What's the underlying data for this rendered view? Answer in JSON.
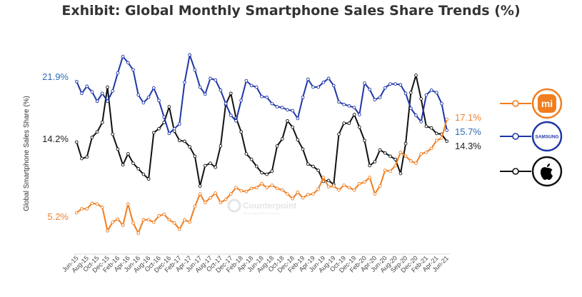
{
  "chart_data": {
    "type": "line",
    "title": "Exhibit: Global Monthly Smartphone Sales Share Trends (%)",
    "xlabel": "",
    "ylabel": "Global Smartphone Sales Share (%)",
    "ylim": [
      0,
      27
    ],
    "grid": false,
    "legend_position": "right",
    "tick_labels": [
      "Jun-15",
      "Aug-15",
      "Oct-15",
      "Dec-15",
      "Feb-16",
      "Apr-16",
      "Jun-16",
      "Aug-16",
      "Oct-16",
      "Dec-16",
      "Feb-17",
      "Apr-17",
      "Jun-17",
      "Aug-17",
      "Oct-17",
      "Dec-17",
      "Feb-18",
      "Apr-18",
      "Jun-18",
      "Aug-18",
      "Oct-18",
      "Dec-18",
      "Feb-19",
      "Apr-19",
      "Jun-19",
      "Aug-19",
      "Oct-19",
      "Dec-19",
      "Feb-20",
      "Apr-20",
      "Jun-20",
      "Aug-20",
      "Sep-20",
      "Dec-20",
      "Feb-21",
      "Apr-21",
      "Jun-21"
    ],
    "series": [
      {
        "name": "Samsung",
        "color": "#1f36a6",
        "label_color": "#2f6db3",
        "start_label": "21.9%",
        "end_label": "15.7%",
        "values": [
          21.9,
          20.4,
          21.3,
          20.6,
          19.4,
          20.4,
          19.4,
          20.7,
          23.0,
          25.1,
          24.3,
          23.4,
          20.2,
          19.2,
          19.9,
          21.1,
          19.5,
          17.4,
          15.3,
          15.9,
          16.5,
          21.8,
          25.3,
          23.4,
          21.2,
          20.3,
          22.3,
          22.1,
          20.8,
          19.1,
          17.6,
          16.9,
          19.5,
          22.0,
          21.4,
          21.2,
          20.0,
          19.9,
          19.1,
          18.7,
          18.6,
          18.3,
          18.2,
          17.2,
          19.9,
          22.2,
          21.2,
          21.2,
          21.8,
          22.3,
          21.4,
          19.3,
          19.0,
          18.8,
          18.6,
          17.7,
          21.7,
          20.9,
          19.6,
          19.9,
          21.1,
          21.6,
          21.6,
          21.5,
          20.4,
          18.5,
          17.6,
          16.8,
          20.2,
          20.8,
          20.5,
          19.1,
          15.7
        ]
      },
      {
        "name": "Apple",
        "color": "#111111",
        "label_color": "#222222",
        "start_label": "14.2%",
        "end_label": "14.3%",
        "values": [
          14.2,
          12.1,
          12.3,
          14.8,
          15.5,
          16.7,
          21.2,
          15.2,
          13.3,
          11.3,
          12.7,
          11.5,
          10.8,
          10.1,
          9.5,
          15.4,
          15.9,
          16.7,
          18.7,
          15.6,
          14.4,
          14.3,
          13.6,
          12.4,
          8.6,
          11.2,
          11.5,
          11.0,
          13.7,
          19.0,
          20.4,
          17.3,
          15.5,
          12.7,
          12.0,
          11.1,
          10.3,
          10.1,
          10.5,
          13.7,
          14.6,
          16.9,
          16.1,
          14.5,
          13.3,
          11.4,
          11.1,
          10.6,
          9.2,
          9.3,
          8.8,
          15.2,
          16.6,
          16.6,
          17.7,
          16.1,
          14.4,
          11.2,
          11.7,
          13.2,
          12.8,
          12.4,
          12.0,
          10.2,
          14.0,
          20.5,
          22.7,
          19.7,
          16.2,
          16.0,
          15.3,
          15.2,
          14.3
        ]
      },
      {
        "name": "Xiaomi",
        "color": "#f07d1e",
        "label_color": "#f08030",
        "start_label": "5.2%",
        "end_label": "17.1%",
        "values": [
          5.2,
          5.7,
          5.7,
          6.4,
          6.3,
          5.9,
          2.9,
          4.0,
          4.4,
          3.6,
          6.3,
          3.9,
          2.6,
          4.3,
          4.3,
          4.0,
          4.8,
          5.0,
          4.3,
          3.9,
          3.1,
          4.3,
          4.0,
          6.0,
          7.6,
          6.5,
          7.1,
          7.7,
          6.5,
          6.9,
          7.6,
          8.4,
          8.0,
          7.9,
          8.3,
          8.4,
          8.9,
          8.4,
          8.7,
          8.3,
          8.1,
          7.6,
          7.0,
          7.8,
          7.1,
          7.5,
          7.6,
          8.2,
          9.7,
          8.5,
          8.6,
          8.1,
          8.7,
          8.4,
          8.1,
          8.9,
          9.1,
          9.7,
          7.6,
          8.6,
          10.6,
          10.5,
          11.2,
          12.9,
          12.4,
          11.8,
          11.5,
          12.7,
          12.9,
          13.4,
          14.4,
          14.7,
          17.1
        ]
      }
    ],
    "legend": [
      {
        "name": "Xiaomi",
        "logo_text": "mi",
        "color": "#f07d1e"
      },
      {
        "name": "Samsung",
        "logo_text": "SAMSUNG",
        "color": "#1f36a6"
      },
      {
        "name": "Apple",
        "logo_text": "",
        "color": "#111111"
      }
    ]
  },
  "watermark": {
    "name": "Counterpoint",
    "tagline": "Technology Market Research"
  }
}
